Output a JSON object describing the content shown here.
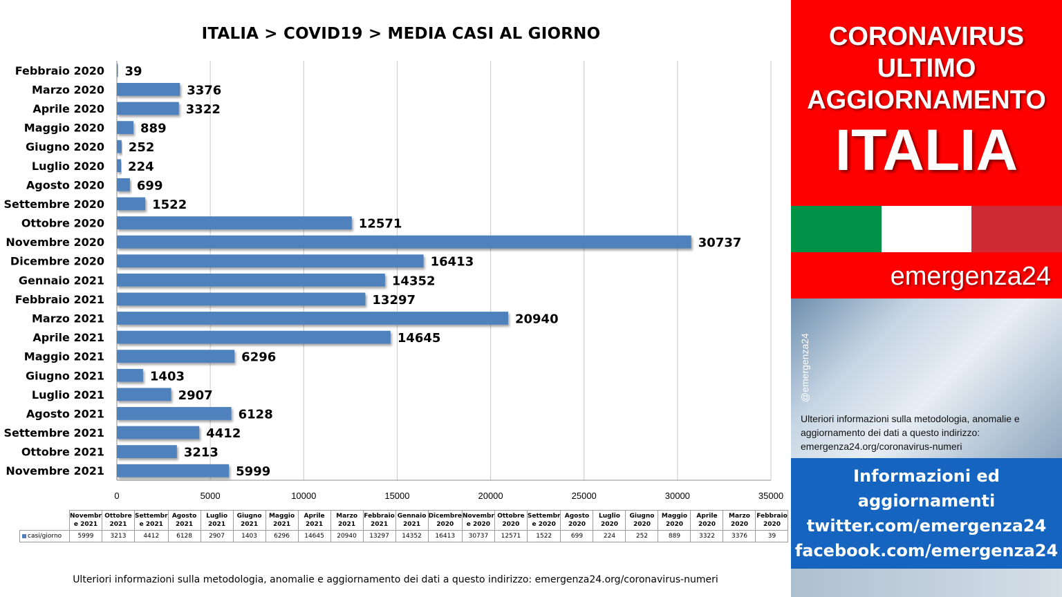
{
  "chart_data": {
    "type": "bar",
    "orientation": "horizontal",
    "title": "ITALIA >  COVID19 > MEDIA CASI AL GIORNO",
    "categories": [
      "Febbraio 2020",
      "Marzo 2020",
      "Aprile 2020",
      "Maggio 2020",
      "Giugno 2020",
      "Luglio 2020",
      "Agosto 2020",
      "Settembre 2020",
      "Ottobre 2020",
      "Novembre 2020",
      "Dicembre 2020",
      "Gennaio 2021",
      "Febbraio 2021",
      "Marzo 2021",
      "Aprile 2021",
      "Maggio 2021",
      "Giugno 2021",
      "Luglio 2021",
      "Agosto 2021",
      "Settembre 2021",
      "Ottobre 2021",
      "Novembre 2021"
    ],
    "series": [
      {
        "name": "casi/giorno",
        "color": "#4f81bd",
        "values": [
          39,
          3376,
          3322,
          889,
          252,
          224,
          699,
          1522,
          12571,
          30737,
          16413,
          14352,
          13297,
          20940,
          14645,
          6296,
          1403,
          2907,
          6128,
          4412,
          3213,
          5999
        ]
      }
    ],
    "xlim": [
      0,
      35000
    ],
    "xticks": [
      "0",
      "5000",
      "10000",
      "15000",
      "20000",
      "25000",
      "30000",
      "35000"
    ],
    "grid": true,
    "data_labels": true,
    "table": {
      "headers": [
        "Novembr e 2021",
        "Ottobre 2021",
        "Settembr e 2021",
        "Agosto 2021",
        "Luglio 2021",
        "Giugno 2021",
        "Maggio 2021",
        "Aprile 2021",
        "Marzo 2021",
        "Febbraio 2021",
        "Gennaio 2021",
        "Dicembre 2020",
        "Novembr e 2020",
        "Ottobre 2020",
        "Settembr e 2020",
        "Agosto 2020",
        "Luglio 2020",
        "Giugno 2020",
        "Maggio 2020",
        "Aprile 2020",
        "Marzo 2020",
        "Febbraio 2020"
      ],
      "series_label": "casi/giorno",
      "values": [
        "5999",
        "3213",
        "4412",
        "6128",
        "2907",
        "1403",
        "6296",
        "14645",
        "20940",
        "13297",
        "14352",
        "16413",
        "30737",
        "12571",
        "1522",
        "699",
        "224",
        "252",
        "889",
        "3322",
        "3376",
        "39"
      ]
    }
  },
  "footer_note": "Ulteriori informazioni sulla metodologia, anomalie e aggiornamento dei dati a questo indirizzo: emergenza24.org/coronavirus-numeri",
  "side": {
    "header_lines": [
      "CORONAVIRUS",
      "ULTIMO",
      "AGGIORNAMENTO"
    ],
    "country": "ITALIA",
    "brand": "emergenza24",
    "handle": "@emergenza24",
    "note": "Ulteriori informazioni sulla metodologia, anomalie e aggiornamento dei dati a questo indirizzo: emergenza24.org/coronavirus-numeri",
    "info_lines": [
      "Informazioni ed",
      "aggiornamenti",
      "twitter.com/emergenza24",
      "facebook.com/emergenza24"
    ],
    "colors": {
      "red": "#ff0000",
      "flag_green": "#009246",
      "flag_white": "#ffffff",
      "flag_red": "#ce2b37",
      "info_blue": "#1565c0"
    }
  }
}
